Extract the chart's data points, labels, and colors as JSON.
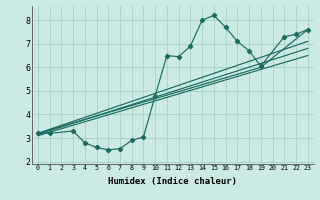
{
  "bg_color": "#cceae4",
  "grid_color": "#aad4cc",
  "line_color": "#1a6b60",
  "xlabel": "Humidex (Indice chaleur)",
  "xlim": [
    -0.5,
    23.5
  ],
  "ylim": [
    1.9,
    8.6
  ],
  "xticks": [
    0,
    1,
    2,
    3,
    4,
    5,
    6,
    7,
    8,
    9,
    10,
    11,
    12,
    13,
    14,
    15,
    16,
    17,
    18,
    19,
    20,
    21,
    22,
    23
  ],
  "yticks": [
    2,
    3,
    4,
    5,
    6,
    7,
    8
  ],
  "curve_x": [
    0,
    1,
    3,
    4,
    5,
    6,
    7,
    8,
    9,
    10,
    11,
    12,
    13,
    14,
    15,
    16,
    17,
    18,
    19,
    21,
    22,
    23
  ],
  "curve_y": [
    3.2,
    3.2,
    3.3,
    2.8,
    2.6,
    2.5,
    2.55,
    2.9,
    3.05,
    4.8,
    6.5,
    6.45,
    6.9,
    8.0,
    8.2,
    7.7,
    7.1,
    6.7,
    6.05,
    7.3,
    7.4,
    7.6
  ],
  "line1_x": [
    0,
    23
  ],
  "line1_y": [
    3.1,
    6.5
  ],
  "line2_x": [
    0,
    23
  ],
  "line2_y": [
    3.15,
    6.8
  ],
  "line3_x": [
    0,
    23
  ],
  "line3_y": [
    3.2,
    7.1
  ],
  "line4_x": [
    0,
    19,
    23
  ],
  "line4_y": [
    3.2,
    6.0,
    7.6
  ]
}
